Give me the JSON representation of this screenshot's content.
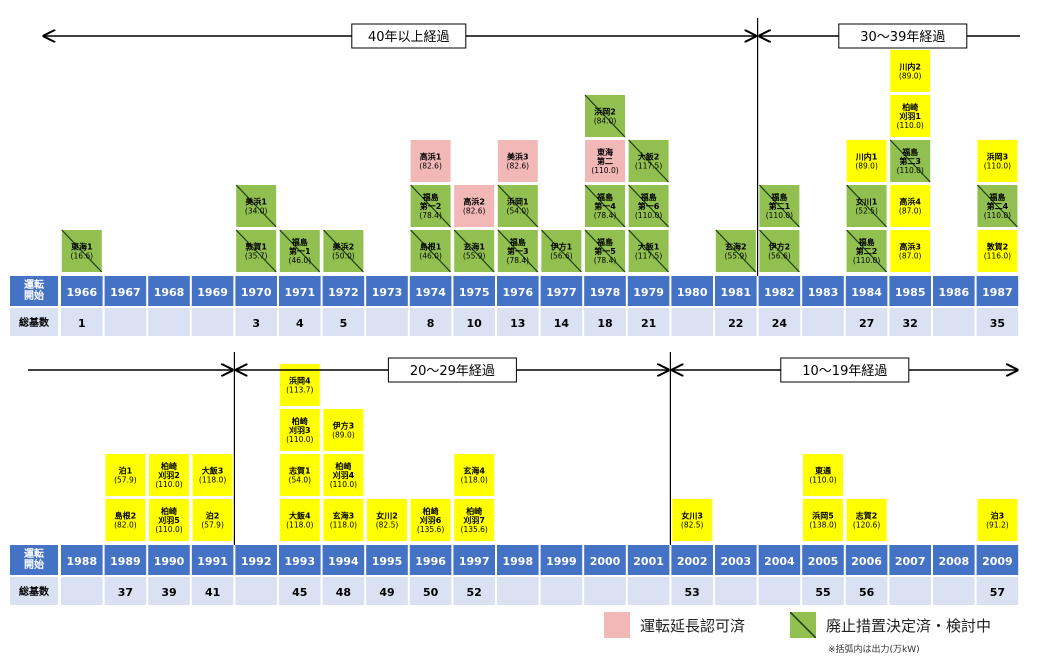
{
  "colors": {
    "header_bg": "#4472C4",
    "count_bg": "#D9E1F2",
    "licensed": "#F2B8B8",
    "decommission": "#92C050",
    "plant": "#FFFF00",
    "line": "#000000"
  },
  "row_labels": {
    "start": "運転\n開始",
    "total": "総基数"
  },
  "legend": {
    "licensed_label": "運転延長認可済",
    "decommission_label": "廃止措置決定済・検討中",
    "note": "※括弧内は出力(万kW)"
  },
  "chart_data": [
    {
      "type": "table",
      "panel": "top",
      "categories": [
        "1966",
        "1967",
        "1968",
        "1969",
        "1970",
        "1971",
        "1972",
        "1973",
        "1974",
        "1975",
        "1976",
        "1977",
        "1978",
        "1979",
        "1980",
        "1981",
        "1982",
        "1983",
        "1984",
        "1985",
        "1986",
        "1987"
      ],
      "totals": [
        "1",
        "",
        "",
        "",
        "3",
        "4",
        "5",
        "",
        "8",
        "10",
        "13",
        "14",
        "18",
        "21",
        "",
        "22",
        "24",
        "",
        "27",
        "32",
        "",
        "35"
      ],
      "periods": [
        {
          "label": "40年以上経過",
          "from": 0,
          "to": 16,
          "left_arrow": true,
          "right_arrow": true
        },
        {
          "label": "30〜39年経過",
          "from": 16,
          "to": 22,
          "left_arrow": true,
          "right_arrow": false
        }
      ],
      "plants": [
        [
          {
            "name": "東海1",
            "mw": "16.6",
            "status": "decommission"
          }
        ],
        [],
        [],
        [],
        [
          {
            "name": "敦賀1",
            "mw": "35.7",
            "status": "decommission"
          },
          {
            "name": "美浜1",
            "mw": "34.0",
            "status": "decommission"
          }
        ],
        [
          {
            "name": "福島\n第一1",
            "mw": "46.0",
            "status": "decommission"
          }
        ],
        [
          {
            "name": "美浜2",
            "mw": "50.0",
            "status": "decommission"
          }
        ],
        [],
        [
          {
            "name": "島根1",
            "mw": "46.0",
            "status": "decommission"
          },
          {
            "name": "福島\n第一2",
            "mw": "78.4",
            "status": "decommission"
          },
          {
            "name": "高浜1",
            "mw": "82.6",
            "status": "licensed"
          }
        ],
        [
          {
            "name": "玄海1",
            "mw": "55.9",
            "status": "decommission"
          },
          {
            "name": "高浜2",
            "mw": "82.6",
            "status": "licensed"
          }
        ],
        [
          {
            "name": "福島\n第一3",
            "mw": "78.4",
            "status": "decommission"
          },
          {
            "name": "浜岡1",
            "mw": "54.0",
            "status": "decommission"
          },
          {
            "name": "美浜3",
            "mw": "82.6",
            "status": "licensed"
          }
        ],
        [
          {
            "name": "伊方1",
            "mw": "56.6",
            "status": "decommission"
          }
        ],
        [
          {
            "name": "福島\n第一5",
            "mw": "78.4",
            "status": "decommission"
          },
          {
            "name": "福島\n第一4",
            "mw": "78.4",
            "status": "decommission"
          },
          {
            "name": "東海\n第二",
            "mw": "110.0",
            "status": "licensed"
          },
          {
            "name": "浜岡2",
            "mw": "84.0",
            "status": "decommission"
          }
        ],
        [
          {
            "name": "大飯1",
            "mw": "117.5",
            "status": "decommission"
          },
          {
            "name": "福島\n第一6",
            "mw": "110.0",
            "status": "decommission"
          },
          {
            "name": "大飯2",
            "mw": "117.5",
            "status": "decommission"
          }
        ],
        [],
        [
          {
            "name": "玄海2",
            "mw": "55.9",
            "status": "decommission"
          }
        ],
        [
          {
            "name": "伊方2",
            "mw": "56.6",
            "status": "decommission"
          },
          {
            "name": "福島\n第二1",
            "mw": "110.0",
            "status": "decommission"
          }
        ],
        [],
        [
          {
            "name": "福島\n第二2",
            "mw": "110.0",
            "status": "decommission"
          },
          {
            "name": "女川1",
            "mw": "52.5",
            "status": "decommission"
          },
          {
            "name": "川内1",
            "mw": "89.0",
            "status": "plant"
          }
        ],
        [
          {
            "name": "高浜3",
            "mw": "87.0",
            "status": "plant"
          },
          {
            "name": "高浜4",
            "mw": "87.0",
            "status": "plant"
          },
          {
            "name": "福島\n第二3",
            "mw": "110.0",
            "status": "decommission"
          },
          {
            "name": "柏崎\n刈羽1",
            "mw": "110.0",
            "status": "plant"
          },
          {
            "name": "川内2",
            "mw": "89.0",
            "status": "plant"
          }
        ],
        [],
        [
          {
            "name": "敦賀2",
            "mw": "116.0",
            "status": "plant"
          },
          {
            "name": "福島\n第二4",
            "mw": "110.0",
            "status": "decommission"
          },
          {
            "name": "浜岡3",
            "mw": "110.0",
            "status": "plant"
          }
        ]
      ]
    },
    {
      "type": "table",
      "panel": "bottom",
      "categories": [
        "1988",
        "1989",
        "1990",
        "1991",
        "1992",
        "1993",
        "1994",
        "1995",
        "1996",
        "1997",
        "1998",
        "1999",
        "2000",
        "2001",
        "2002",
        "2003",
        "2004",
        "2005",
        "2006",
        "2007",
        "2008",
        "2009"
      ],
      "totals": [
        "",
        "37",
        "39",
        "41",
        "",
        "45",
        "48",
        "49",
        "50",
        "52",
        "",
        "",
        "",
        "",
        "53",
        "",
        "",
        "55",
        "56",
        "",
        "",
        "57"
      ],
      "periods": [
        {
          "label": "",
          "from": 0,
          "to": 4,
          "left_arrow": false,
          "right_arrow": true
        },
        {
          "label": "20〜29年経過",
          "from": 4,
          "to": 14,
          "left_arrow": true,
          "right_arrow": true
        },
        {
          "label": "10〜19年経過",
          "from": 14,
          "to": 22,
          "left_arrow": true,
          "right_arrow": true
        }
      ],
      "plants": [
        [],
        [
          {
            "name": "島根2",
            "mw": "82.0",
            "status": "plant"
          },
          {
            "name": "泊1",
            "mw": "57.9",
            "status": "plant"
          }
        ],
        [
          {
            "name": "柏崎\n刈羽5",
            "mw": "110.0",
            "status": "plant"
          },
          {
            "name": "柏崎\n刈羽2",
            "mw": "110.0",
            "status": "plant"
          }
        ],
        [
          {
            "name": "泊2",
            "mw": "57.9",
            "status": "plant"
          },
          {
            "name": "大飯3",
            "mw": "118.0",
            "status": "plant"
          }
        ],
        [],
        [
          {
            "name": "大飯4",
            "mw": "118.0",
            "status": "plant"
          },
          {
            "name": "志賀1",
            "mw": "54.0",
            "status": "plant"
          },
          {
            "name": "柏崎\n刈羽3",
            "mw": "110.0",
            "status": "plant"
          },
          {
            "name": "浜岡4",
            "mw": "113.7",
            "status": "plant"
          }
        ],
        [
          {
            "name": "玄海3",
            "mw": "118.0",
            "status": "plant"
          },
          {
            "name": "柏崎\n刈羽4",
            "mw": "110.0",
            "status": "plant"
          },
          {
            "name": "伊方3",
            "mw": "89.0",
            "status": "plant"
          }
        ],
        [
          {
            "name": "女川2",
            "mw": "82.5",
            "status": "plant"
          }
        ],
        [
          {
            "name": "柏崎\n刈羽6",
            "mw": "135.6",
            "status": "plant"
          }
        ],
        [
          {
            "name": "柏崎\n刈羽7",
            "mw": "135.6",
            "status": "plant"
          },
          {
            "name": "玄海4",
            "mw": "118.0",
            "status": "plant"
          }
        ],
        [],
        [],
        [],
        [],
        [
          {
            "name": "女川3",
            "mw": "82.5",
            "status": "plant"
          }
        ],
        [],
        [],
        [
          {
            "name": "浜岡5",
            "mw": "138.0",
            "status": "plant"
          },
          {
            "name": "東通",
            "mw": "110.0",
            "status": "plant"
          }
        ],
        [
          {
            "name": "志賀2",
            "mw": "120.6",
            "status": "plant"
          }
        ],
        [],
        [],
        [
          {
            "name": "泊3",
            "mw": "91.2",
            "status": "plant"
          }
        ]
      ]
    }
  ]
}
